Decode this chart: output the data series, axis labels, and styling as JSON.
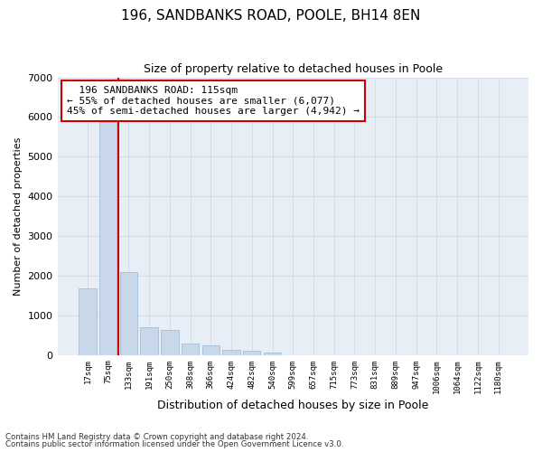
{
  "title1": "196, SANDBANKS ROAD, POOLE, BH14 8EN",
  "title2": "Size of property relative to detached houses in Poole",
  "xlabel": "Distribution of detached houses by size in Poole",
  "ylabel": "Number of detached properties",
  "footnote1": "Contains HM Land Registry data © Crown copyright and database right 2024.",
  "footnote2": "Contains public sector information licensed under the Open Government Licence v3.0.",
  "annotation_line1": "  196 SANDBANKS ROAD: 115sqm  ",
  "annotation_line2": "← 55% of detached houses are smaller (6,077)",
  "annotation_line3": "45% of semi-detached houses are larger (4,942) →",
  "bar_color": "#c8d8ea",
  "bar_edge_color": "#9ab8d0",
  "grid_color": "#d4dce8",
  "vline_color": "#cc0000",
  "background_color": "#e8eef6",
  "categories": [
    "17sqm",
    "75sqm",
    "133sqm",
    "191sqm",
    "250sqm",
    "308sqm",
    "366sqm",
    "424sqm",
    "482sqm",
    "540sqm",
    "599sqm",
    "657sqm",
    "715sqm",
    "773sqm",
    "831sqm",
    "889sqm",
    "947sqm",
    "1006sqm",
    "1064sqm",
    "1122sqm",
    "1180sqm"
  ],
  "values": [
    1680,
    5870,
    2080,
    700,
    620,
    280,
    230,
    130,
    110,
    65,
    0,
    0,
    0,
    0,
    0,
    0,
    0,
    0,
    0,
    0,
    0
  ],
  "vline_x_pos": 1.5,
  "ylim": [
    0,
    7000
  ],
  "yticks": [
    0,
    1000,
    2000,
    3000,
    4000,
    5000,
    6000,
    7000
  ]
}
